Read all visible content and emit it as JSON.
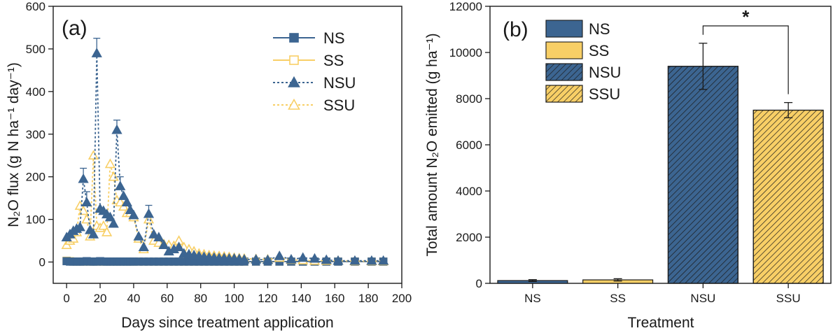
{
  "colors": {
    "navy": "#3c6591",
    "gold": "#f8cf66",
    "axis": "#1a1a1a"
  },
  "chart_data": [
    {
      "type": "line",
      "panel": "(a)",
      "xlabel": "Days since treatment application",
      "ylabel": "N₂O flux (g N ha⁻¹ day⁻¹)",
      "xlim": [
        -8,
        200
      ],
      "ylim": [
        -50,
        600
      ],
      "xticks": [
        0,
        20,
        40,
        60,
        80,
        100,
        120,
        140,
        160,
        180,
        200
      ],
      "yticks": [
        0,
        100,
        200,
        300,
        400,
        500,
        600
      ],
      "legend_position": "top-right",
      "series": [
        {
          "name": "NS",
          "color": "#3c6591",
          "line": "solid",
          "marker": "square",
          "fill": true,
          "x": [
            0,
            2,
            4,
            6,
            8,
            10,
            12,
            14,
            16,
            18,
            20,
            22,
            24,
            26,
            28,
            30,
            32,
            34,
            36,
            38,
            40,
            43,
            46,
            49,
            52,
            55,
            58,
            61,
            64,
            67,
            70,
            73,
            76,
            79,
            82,
            85,
            88,
            91,
            94,
            97,
            100,
            103,
            106,
            113,
            120,
            127,
            134,
            141,
            148,
            155,
            162,
            172,
            182,
            189
          ],
          "y": [
            2,
            1,
            1,
            1,
            1,
            1,
            2,
            1,
            1,
            1,
            2,
            1,
            1,
            1,
            1,
            1,
            1,
            1,
            1,
            1,
            1,
            1,
            1,
            1,
            1,
            1,
            1,
            1,
            1,
            1,
            1,
            1,
            1,
            1,
            1,
            1,
            1,
            1,
            1,
            1,
            1,
            1,
            1,
            1,
            1,
            1,
            1,
            1,
            1,
            1,
            1,
            1,
            1,
            1
          ]
        },
        {
          "name": "SS",
          "color": "#f8cf66",
          "line": "solid",
          "marker": "square",
          "fill": false,
          "x": [
            0,
            2,
            4,
            6,
            8,
            10,
            12,
            14,
            16,
            18,
            20,
            22,
            24,
            26,
            28,
            30,
            32,
            34,
            36,
            38,
            40,
            43,
            46,
            49,
            52,
            55,
            58,
            61,
            64,
            67,
            70,
            73,
            76,
            79,
            82,
            85,
            88,
            91,
            94,
            97,
            100,
            103,
            106,
            113,
            120,
            127,
            134,
            141,
            148,
            155,
            162,
            172,
            182,
            189
          ],
          "y": [
            3,
            2,
            1,
            1,
            1,
            1,
            1,
            1,
            1,
            1,
            1,
            1,
            1,
            1,
            1,
            1,
            1,
            1,
            1,
            1,
            1,
            1,
            1,
            1,
            1,
            1,
            1,
            1,
            1,
            1,
            1,
            1,
            1,
            1,
            1,
            1,
            1,
            1,
            1,
            1,
            1,
            1,
            1,
            1,
            1,
            1,
            1,
            1,
            1,
            1,
            1,
            1,
            1,
            1
          ]
        },
        {
          "name": "NSU",
          "color": "#3c6591",
          "line": "dotted",
          "marker": "triangle",
          "fill": true,
          "x": [
            0,
            2,
            4,
            6,
            8,
            10,
            12,
            14,
            16,
            18,
            20,
            22,
            24,
            26,
            28,
            30,
            32,
            34,
            36,
            38,
            40,
            43,
            46,
            49,
            52,
            55,
            58,
            61,
            64,
            67,
            70,
            73,
            76,
            79,
            82,
            85,
            88,
            91,
            94,
            97,
            100,
            103,
            106,
            113,
            120,
            127,
            134,
            141,
            148,
            155,
            162,
            172,
            182,
            189
          ],
          "y": [
            58,
            65,
            73,
            78,
            82,
            195,
            140,
            75,
            65,
            490,
            125,
            120,
            112,
            105,
            90,
            310,
            178,
            155,
            140,
            122,
            110,
            60,
            35,
            113,
            65,
            58,
            40,
            25,
            30,
            35,
            20,
            18,
            16,
            14,
            12,
            11,
            10,
            9,
            9,
            8,
            8,
            7,
            6,
            6,
            5,
            14,
            6,
            10,
            8,
            5,
            3,
            3,
            3,
            3
          ],
          "error_top": [
            null,
            null,
            null,
            null,
            null,
            220,
            165,
            null,
            null,
            525,
            null,
            null,
            null,
            null,
            null,
            333,
            200,
            null,
            null,
            null,
            null,
            null,
            null,
            133,
            null,
            null,
            null,
            null,
            null,
            null,
            null,
            null,
            null,
            null,
            null,
            null,
            null,
            null,
            null,
            null,
            null,
            null,
            null,
            null,
            null,
            null,
            null,
            null,
            null,
            null,
            null,
            null,
            null,
            null
          ]
        },
        {
          "name": "SSU",
          "color": "#f8cf66",
          "line": "dotted",
          "marker": "triangle",
          "fill": false,
          "x": [
            0,
            2,
            4,
            6,
            8,
            10,
            12,
            14,
            16,
            18,
            20,
            22,
            24,
            26,
            28,
            30,
            32,
            34,
            36,
            38,
            40,
            43,
            46,
            49,
            52,
            55,
            58,
            61,
            64,
            67,
            70,
            73,
            76,
            79,
            82,
            85,
            88,
            91,
            94,
            97,
            100,
            103,
            106,
            113,
            120,
            127,
            134,
            141,
            148,
            155,
            162,
            172,
            182,
            189
          ],
          "y": [
            40,
            50,
            55,
            70,
            132,
            120,
            100,
            60,
            250,
            85,
            80,
            85,
            70,
            230,
            200,
            145,
            140,
            130,
            115,
            115,
            105,
            55,
            30,
            100,
            50,
            45,
            42,
            40,
            38,
            50,
            35,
            30,
            25,
            20,
            18,
            16,
            15,
            14,
            13,
            12,
            10,
            9,
            8,
            7,
            6,
            10,
            5,
            4,
            3,
            3,
            3,
            2,
            2,
            2
          ]
        }
      ]
    },
    {
      "type": "bar",
      "panel": "(b)",
      "xlabel": "Treatment",
      "ylabel": "Total amount N₂O emitted (g ha⁻¹)",
      "categories": [
        "NS",
        "SS",
        "NSU",
        "SSU"
      ],
      "values": [
        120,
        150,
        9400,
        7500
      ],
      "errors": [
        40,
        50,
        1000,
        330
      ],
      "fill_colors": [
        "#3c6591",
        "#f8cf66",
        "#3c6591",
        "#f8cf66"
      ],
      "hatched": [
        false,
        false,
        true,
        true
      ],
      "ylim": [
        0,
        12000
      ],
      "yticks": [
        0,
        2000,
        4000,
        6000,
        8000,
        10000,
        12000
      ],
      "legend": [
        "NS",
        "SS",
        "NSU",
        "SSU"
      ],
      "legend_position": "top-left",
      "significance": {
        "between": [
          "NSU",
          "SSU"
        ],
        "label": "*"
      }
    }
  ]
}
